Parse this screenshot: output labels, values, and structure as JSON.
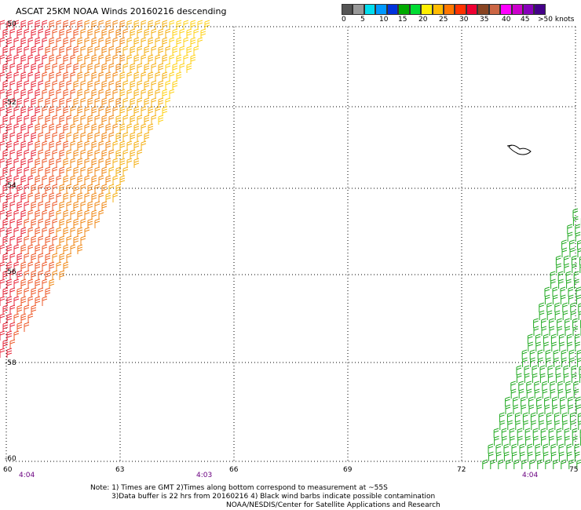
{
  "title": "ASCAT 25KM NOAA Winds 20160216 descending",
  "legend": {
    "colors": [
      "#555555",
      "#999999",
      "#00ddee",
      "#0099ff",
      "#0033dd",
      "#00aa00",
      "#00dd33",
      "#ffee00",
      "#ffbb00",
      "#ff7700",
      "#ff3300",
      "#ee0033",
      "#884422",
      "#cc6644",
      "#ff00ff",
      "#cc00cc",
      "#8800bb",
      "#440088"
    ],
    "labels": [
      "0",
      "5",
      "10",
      "15",
      "20",
      "25",
      "30",
      "35",
      "40",
      "45",
      ">50 knots"
    ]
  },
  "axes": {
    "lon_labels": [
      "60",
      "63",
      "66",
      "69",
      "72",
      "75"
    ],
    "lat_labels": [
      "-50",
      "-52",
      "-54",
      "-56",
      "-58",
      "-60"
    ]
  },
  "pass_times": [
    "4:04",
    "4:03",
    "4:04"
  ],
  "notes": [
    "Note: 1) Times are GMT 2)Times along bottom correspond to measurement at ~55S",
    "3)Data buffer is 22 hrs from 20160216 4) Black wind barbs indicate possible contamination",
    "NOAA/NESDIS/Center for Satellite Applications and Research"
  ]
}
